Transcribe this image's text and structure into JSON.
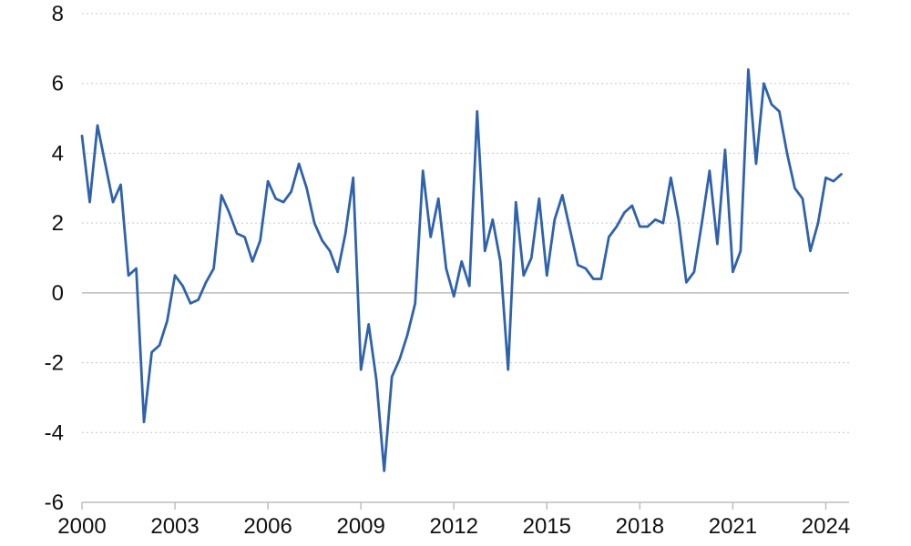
{
  "chart_data": {
    "type": "line",
    "title": "",
    "xlabel": "",
    "ylabel": "",
    "xlim": [
      2000,
      2024.75
    ],
    "ylim": [
      -6,
      8
    ],
    "y_ticks": [
      -6,
      -4,
      -2,
      0,
      2,
      4,
      6,
      8
    ],
    "x_ticks": [
      2000,
      2003,
      2006,
      2009,
      2012,
      2015,
      2018,
      2021,
      2024
    ],
    "y_tick_labels": [
      "-6",
      "-4",
      "-2",
      "0",
      "2",
      "4",
      "6",
      "8"
    ],
    "x_tick_labels": [
      "2000",
      "2003",
      "2006",
      "2009",
      "2012",
      "2015",
      "2018",
      "2021",
      "2024"
    ],
    "grid": "horizontal dotted",
    "line_color": "#2f62ad",
    "series": [
      {
        "x": [
          2000.0,
          2000.25,
          2000.5,
          2000.75,
          2001.0,
          2001.25,
          2001.5,
          2001.75,
          2002.0,
          2002.25,
          2002.5,
          2002.75,
          2003.0,
          2003.25,
          2003.5,
          2003.75,
          2004.0,
          2004.25,
          2004.5,
          2004.75,
          2005.0,
          2005.25,
          2005.5,
          2005.75,
          2006.0,
          2006.25,
          2006.5,
          2006.75,
          2007.0,
          2007.25,
          2007.5,
          2007.75,
          2008.0,
          2008.25,
          2008.5,
          2008.75,
          2009.0,
          2009.25,
          2009.5,
          2009.75,
          2010.0,
          2010.25,
          2010.5,
          2010.75,
          2011.0,
          2011.25,
          2011.5,
          2011.75,
          2012.0,
          2012.25,
          2012.5,
          2012.75,
          2013.0,
          2013.25,
          2013.5,
          2013.75,
          2014.0,
          2014.25,
          2014.5,
          2014.75,
          2015.0,
          2015.25,
          2015.5,
          2015.75,
          2016.0,
          2016.25,
          2016.5,
          2016.75,
          2017.0,
          2017.25,
          2017.5,
          2017.75,
          2018.0,
          2018.25,
          2018.5,
          2018.75,
          2019.0,
          2019.25,
          2019.5,
          2019.75,
          2020.0,
          2020.25,
          2020.5,
          2020.75,
          2021.0,
          2021.25,
          2021.5,
          2021.75,
          2022.0,
          2022.25,
          2022.5,
          2022.75,
          2023.0,
          2023.25,
          2023.5,
          2023.75,
          2024.0,
          2024.25,
          2024.5
        ],
        "values": [
          4.5,
          2.6,
          4.8,
          3.7,
          2.6,
          3.1,
          0.5,
          0.7,
          -3.7,
          -1.7,
          -1.5,
          -0.8,
          0.5,
          0.2,
          -0.3,
          -0.2,
          0.3,
          0.7,
          2.8,
          2.3,
          1.7,
          1.6,
          0.9,
          1.5,
          3.2,
          2.7,
          2.6,
          2.9,
          3.7,
          3.0,
          2.0,
          1.5,
          1.2,
          0.6,
          1.7,
          3.3,
          -2.2,
          -0.9,
          -2.5,
          -5.1,
          -2.4,
          -1.9,
          -1.2,
          -0.3,
          3.5,
          1.6,
          2.7,
          0.7,
          -0.1,
          0.9,
          0.2,
          5.2,
          1.2,
          2.1,
          0.9,
          -2.2,
          2.6,
          0.5,
          1.0,
          2.7,
          0.5,
          2.1,
          2.8,
          1.8,
          0.8,
          0.7,
          0.4,
          0.4,
          1.6,
          1.9,
          2.3,
          2.5,
          1.9,
          1.9,
          2.1,
          2.0,
          3.3,
          2.1,
          0.3,
          0.6,
          2.0,
          3.5,
          1.4,
          4.1,
          0.6,
          1.2,
          6.4,
          3.7,
          6.0,
          5.4,
          5.2,
          4.0,
          3.0,
          2.7,
          1.2,
          2.0,
          3.3,
          3.2,
          3.4
        ]
      }
    ]
  }
}
